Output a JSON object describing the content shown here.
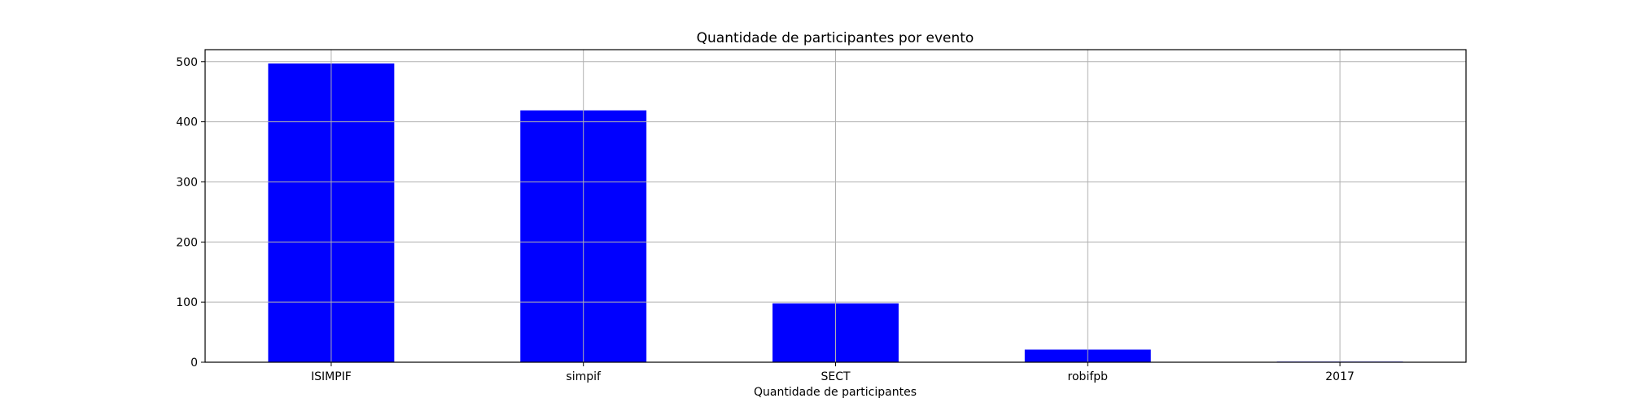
{
  "chart_data": {
    "type": "bar",
    "title": "Quantidade de participantes por evento",
    "xlabel": "Quantidade de participantes",
    "ylabel": "",
    "categories": [
      "ISIMPIF",
      "simpif",
      "SECT",
      "robifpb",
      "2017"
    ],
    "values": [
      497,
      419,
      98,
      21,
      1
    ],
    "ylim": [
      0,
      520
    ],
    "yticks": [
      0,
      100,
      200,
      300,
      400,
      500
    ],
    "grid": true,
    "legend": "none",
    "bar_color": "#0000ff",
    "grid_color": "#b0b0b0"
  }
}
